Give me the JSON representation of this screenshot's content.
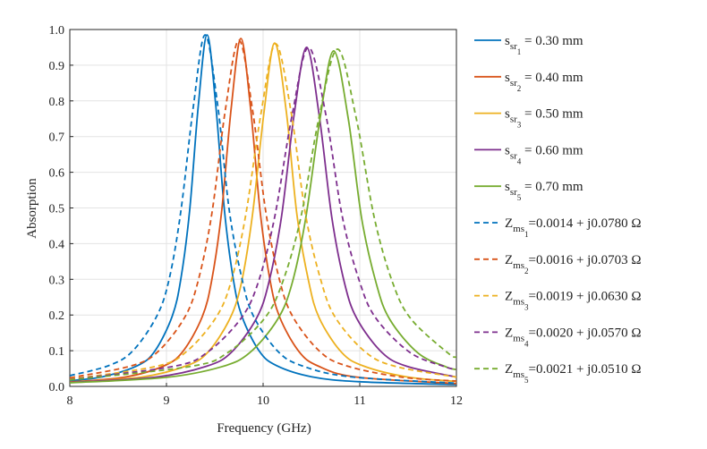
{
  "chart_data": {
    "type": "line",
    "xlabel": "Frequency (GHz)",
    "ylabel": "Absorption",
    "xlim": [
      8,
      12
    ],
    "xticks": [
      8,
      9,
      10,
      11,
      12
    ],
    "ylim": [
      0,
      1
    ],
    "yticks": [
      {
        "value": 0,
        "label": "0.0"
      },
      0.1,
      0.2,
      0.3,
      0.4,
      0.5,
      0.6,
      0.7,
      0.8,
      0.9,
      {
        "value": 1,
        "label": "1.0"
      }
    ],
    "grid": true,
    "legend": "outside-right",
    "series": [
      {
        "name": {
          "base": "s",
          "sub": "sr",
          "index": "1",
          "rest": " = 0.30 mm"
        },
        "color": "#0072BD",
        "line_style": "solid",
        "x": [
          8,
          8.34,
          8.7,
          8.88,
          9.06,
          9.15,
          9.24,
          9.33,
          9.42,
          9.51,
          9.6,
          9.69,
          9.78,
          9.96,
          10.14,
          10.5,
          11,
          12
        ],
        "values": [
          0.016,
          0.027,
          0.058,
          0.099,
          0.197,
          0.303,
          0.493,
          0.788,
          0.985,
          0.788,
          0.493,
          0.303,
          0.197,
          0.099,
          0.058,
          0.027,
          0.013,
          0.005
        ]
      },
      {
        "name": {
          "base": "s",
          "sub": "sr",
          "index": "2",
          "rest": " = 0.40 mm"
        },
        "color": "#D95319",
        "line_style": "solid",
        "x": [
          8,
          8.57,
          8.97,
          9.17,
          9.37,
          9.47,
          9.57,
          9.67,
          9.77,
          9.87,
          9.97,
          10.07,
          10.17,
          10.37,
          10.57,
          10.97,
          12
        ],
        "values": [
          0.012,
          0.026,
          0.057,
          0.098,
          0.195,
          0.3,
          0.488,
          0.78,
          0.975,
          0.78,
          0.488,
          0.3,
          0.195,
          0.098,
          0.057,
          0.026,
          0.008
        ]
      },
      {
        "name": {
          "base": "s",
          "sub": "sr",
          "index": "3",
          "rest": " = 0.50 mm"
        },
        "color": "#EDB120",
        "line_style": "solid",
        "x": [
          8,
          8.74,
          9.2,
          9.43,
          9.66,
          9.78,
          9.89,
          10.01,
          10.12,
          10.24,
          10.35,
          10.47,
          10.58,
          10.81,
          11.04,
          11.5,
          12
        ],
        "values": [
          0.011,
          0.026,
          0.057,
          0.096,
          0.192,
          0.296,
          0.481,
          0.77,
          0.962,
          0.77,
          0.481,
          0.296,
          0.192,
          0.096,
          0.057,
          0.026,
          0.014
        ]
      },
      {
        "name": {
          "base": "s",
          "sub": "sr",
          "index": "4",
          "rest": " = 0.60 mm"
        },
        "color": "#7E2F8E",
        "line_style": "solid",
        "x": [
          8,
          8.89,
          9.41,
          9.67,
          9.93,
          10.06,
          10.19,
          10.32,
          10.45,
          10.58,
          10.71,
          10.84,
          10.97,
          11.23,
          11.49,
          12
        ],
        "values": [
          0.011,
          0.026,
          0.056,
          0.095,
          0.19,
          0.292,
          0.475,
          0.76,
          0.95,
          0.76,
          0.475,
          0.292,
          0.19,
          0.095,
          0.056,
          0.026
        ]
      },
      {
        "name": {
          "base": "s",
          "sub": "sr",
          "index": "5",
          "rest": " = 0.70 mm"
        },
        "color": "#77AC30",
        "line_style": "solid",
        "x": [
          8,
          8.99,
          9.57,
          9.86,
          10.15,
          10.3,
          10.44,
          10.59,
          10.73,
          10.88,
          11.02,
          11.17,
          11.31,
          11.6,
          11.89,
          12
        ],
        "values": [
          0.01,
          0.025,
          0.055,
          0.094,
          0.188,
          0.289,
          0.47,
          0.752,
          0.94,
          0.752,
          0.47,
          0.289,
          0.188,
          0.094,
          0.055,
          0.047
        ]
      },
      {
        "name": {
          "base": "Z",
          "sub": "ms",
          "index": "1",
          "rest": "=0.0014 + j0.0780 Ω"
        },
        "color": "#0072BD",
        "line_style": "dashed",
        "x": [
          8,
          8.4,
          8.65,
          8.9,
          9.03,
          9.15,
          9.28,
          9.4,
          9.53,
          9.65,
          9.78,
          9.9,
          10.15,
          10.4,
          10.9,
          12
        ],
        "values": [
          0.03,
          0.058,
          0.099,
          0.197,
          0.303,
          0.493,
          0.788,
          0.985,
          0.788,
          0.493,
          0.303,
          0.197,
          0.099,
          0.058,
          0.027,
          0.009
        ]
      },
      {
        "name": {
          "base": "Z",
          "sub": "ms",
          "index": "2",
          "rest": "=0.0016 + j0.0703 Ω"
        },
        "color": "#D95319",
        "line_style": "dashed",
        "x": [
          8,
          8.63,
          8.91,
          9.19,
          9.33,
          9.47,
          9.61,
          9.75,
          9.89,
          10.03,
          10.17,
          10.31,
          10.59,
          10.87,
          11.43,
          12
        ],
        "values": [
          0.024,
          0.057,
          0.097,
          0.194,
          0.298,
          0.485,
          0.776,
          0.97,
          0.776,
          0.485,
          0.298,
          0.194,
          0.097,
          0.057,
          0.026,
          0.015
        ]
      },
      {
        "name": {
          "base": "Z",
          "sub": "ms",
          "index": "3",
          "rest": "=0.0019 + j0.0630 Ω"
        },
        "color": "#EDB120",
        "line_style": "dashed",
        "x": [
          8,
          8.89,
          9.2,
          9.51,
          9.67,
          9.82,
          9.98,
          10.13,
          10.29,
          10.44,
          10.6,
          10.75,
          11.06,
          11.37,
          12
        ],
        "values": [
          0.02,
          0.056,
          0.096,
          0.192,
          0.295,
          0.48,
          0.768,
          0.96,
          0.768,
          0.48,
          0.295,
          0.192,
          0.096,
          0.056,
          0.026
        ]
      },
      {
        "name": {
          "base": "Z",
          "sub": "ms",
          "index": "4",
          "rest": "=0.0020 + j0.0570 Ω"
        },
        "color": "#7E2F8E",
        "line_style": "dashed",
        "x": [
          8,
          9.07,
          9.42,
          9.77,
          9.95,
          10.12,
          10.3,
          10.47,
          10.65,
          10.82,
          11.0,
          11.17,
          11.52,
          11.87,
          12
        ],
        "values": [
          0.019,
          0.056,
          0.095,
          0.19,
          0.292,
          0.475,
          0.76,
          0.95,
          0.76,
          0.475,
          0.292,
          0.19,
          0.095,
          0.056,
          0.047
        ]
      },
      {
        "name": {
          "base": "Z",
          "sub": "ms",
          "index": "5",
          "rest": "=0.0021 + j0.0510 Ω"
        },
        "color": "#77AC30",
        "line_style": "dashed",
        "x": [
          8,
          9.25,
          9.63,
          10.01,
          10.2,
          10.39,
          10.58,
          10.77,
          10.96,
          11.15,
          11.34,
          11.53,
          11.91,
          12
        ],
        "values": [
          0.018,
          0.056,
          0.094,
          0.189,
          0.291,
          0.473,
          0.756,
          0.945,
          0.756,
          0.473,
          0.291,
          0.189,
          0.094,
          0.082
        ]
      }
    ]
  }
}
